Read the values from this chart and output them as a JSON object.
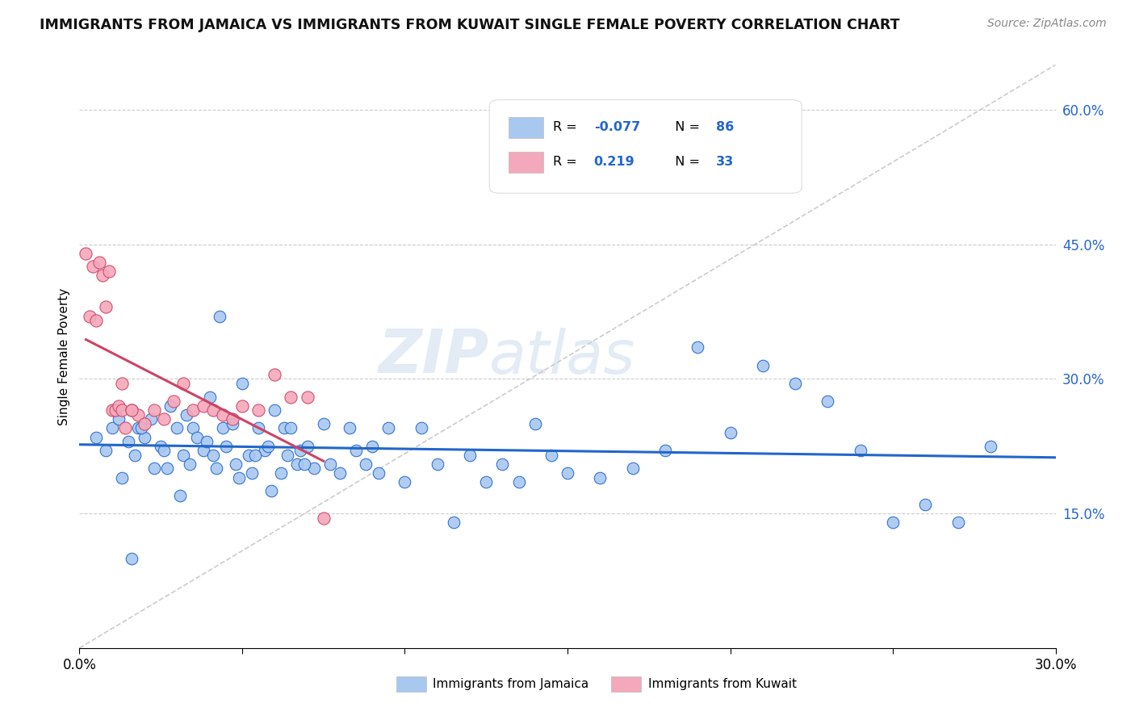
{
  "title": "IMMIGRANTS FROM JAMAICA VS IMMIGRANTS FROM KUWAIT SINGLE FEMALE POVERTY CORRELATION CHART",
  "source_text": "Source: ZipAtlas.com",
  "ylabel": "Single Female Poverty",
  "xlim": [
    0.0,
    0.3
  ],
  "ylim": [
    0.0,
    0.65
  ],
  "x_ticks": [
    0.0,
    0.05,
    0.1,
    0.15,
    0.2,
    0.25,
    0.3
  ],
  "x_tick_labels": [
    "0.0%",
    "",
    "",
    "",
    "",
    "",
    "30.0%"
  ],
  "y_ticks_right": [
    0.15,
    0.3,
    0.45,
    0.6
  ],
  "y_tick_labels_right": [
    "15.0%",
    "30.0%",
    "45.0%",
    "60.0%"
  ],
  "legend_r_jamaica": "-0.077",
  "legend_n_jamaica": "86",
  "legend_r_kuwait": "0.219",
  "legend_n_kuwait": "33",
  "color_jamaica": "#A8C8F0",
  "color_kuwait": "#F4A8BB",
  "color_trend_jamaica": "#2266CC",
  "color_trend_kuwait": "#CC4466",
  "color_dashed": "#CCCCCC",
  "jamaica_x": [
    0.005,
    0.008,
    0.01,
    0.012,
    0.015,
    0.017,
    0.018,
    0.02,
    0.022,
    0.023,
    0.025,
    0.027,
    0.028,
    0.03,
    0.032,
    0.033,
    0.035,
    0.036,
    0.038,
    0.04,
    0.041,
    0.042,
    0.044,
    0.045,
    0.047,
    0.048,
    0.05,
    0.052,
    0.053,
    0.055,
    0.057,
    0.058,
    0.06,
    0.062,
    0.063,
    0.065,
    0.067,
    0.068,
    0.07,
    0.072,
    0.075,
    0.077,
    0.08,
    0.083,
    0.085,
    0.088,
    0.09,
    0.092,
    0.095,
    0.1,
    0.105,
    0.11,
    0.115,
    0.12,
    0.125,
    0.13,
    0.135,
    0.14,
    0.145,
    0.15,
    0.16,
    0.17,
    0.18,
    0.19,
    0.2,
    0.21,
    0.22,
    0.23,
    0.24,
    0.25,
    0.26,
    0.27,
    0.28,
    0.013,
    0.016,
    0.019,
    0.026,
    0.031,
    0.034,
    0.039,
    0.043,
    0.049,
    0.054,
    0.059,
    0.064,
    0.069
  ],
  "jamaica_y": [
    0.235,
    0.22,
    0.245,
    0.255,
    0.23,
    0.215,
    0.245,
    0.235,
    0.255,
    0.2,
    0.225,
    0.2,
    0.27,
    0.245,
    0.215,
    0.26,
    0.245,
    0.235,
    0.22,
    0.28,
    0.215,
    0.2,
    0.245,
    0.225,
    0.25,
    0.205,
    0.295,
    0.215,
    0.195,
    0.245,
    0.22,
    0.225,
    0.265,
    0.195,
    0.245,
    0.245,
    0.205,
    0.22,
    0.225,
    0.2,
    0.25,
    0.205,
    0.195,
    0.245,
    0.22,
    0.205,
    0.225,
    0.195,
    0.245,
    0.185,
    0.245,
    0.205,
    0.14,
    0.215,
    0.185,
    0.205,
    0.185,
    0.25,
    0.215,
    0.195,
    0.19,
    0.2,
    0.22,
    0.335,
    0.24,
    0.315,
    0.295,
    0.275,
    0.22,
    0.14,
    0.16,
    0.14,
    0.225,
    0.19,
    0.1,
    0.245,
    0.22,
    0.17,
    0.205,
    0.23,
    0.37,
    0.19,
    0.215,
    0.175,
    0.215,
    0.205
  ],
  "kuwait_x": [
    0.002,
    0.003,
    0.004,
    0.005,
    0.006,
    0.007,
    0.008,
    0.009,
    0.01,
    0.011,
    0.012,
    0.013,
    0.014,
    0.016,
    0.018,
    0.02,
    0.023,
    0.026,
    0.029,
    0.032,
    0.035,
    0.038,
    0.041,
    0.044,
    0.047,
    0.05,
    0.055,
    0.06,
    0.065,
    0.07,
    0.075,
    0.013,
    0.016
  ],
  "kuwait_y": [
    0.44,
    0.37,
    0.425,
    0.365,
    0.43,
    0.415,
    0.38,
    0.42,
    0.265,
    0.265,
    0.27,
    0.265,
    0.245,
    0.265,
    0.26,
    0.25,
    0.265,
    0.255,
    0.275,
    0.295,
    0.265,
    0.27,
    0.265,
    0.26,
    0.255,
    0.27,
    0.265,
    0.305,
    0.28,
    0.28,
    0.145,
    0.295,
    0.265
  ]
}
